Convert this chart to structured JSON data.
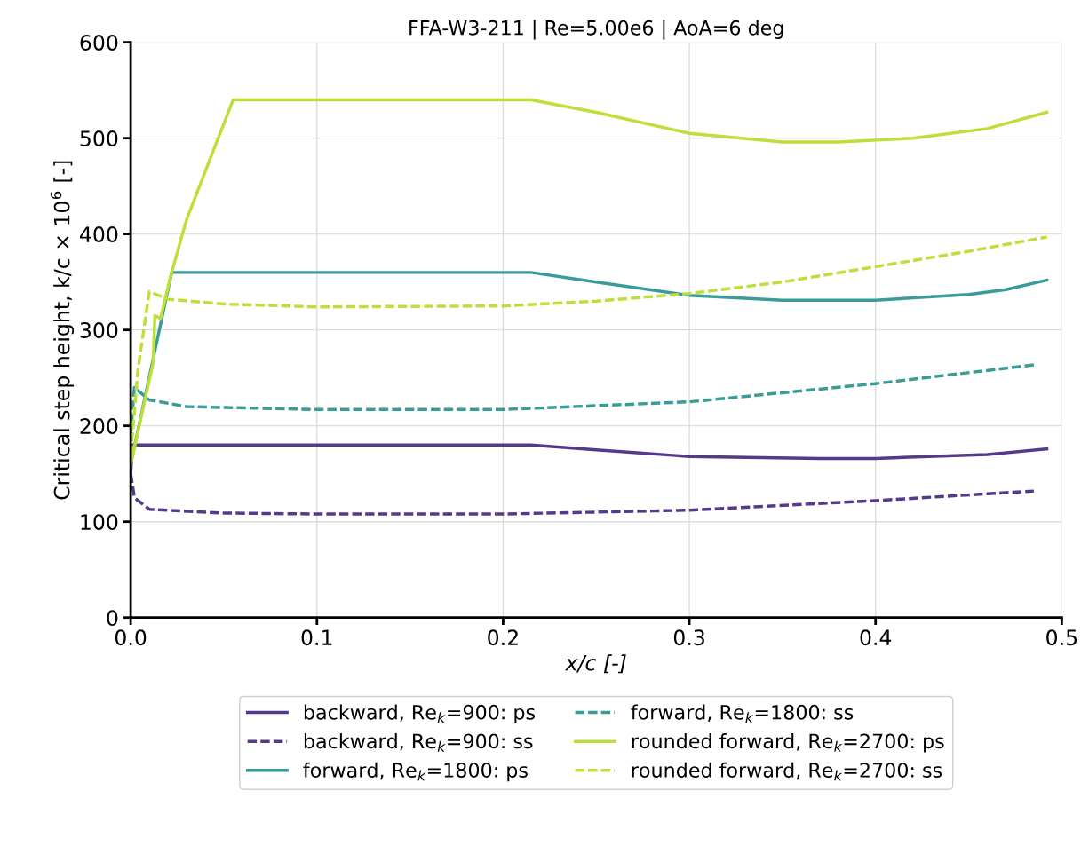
{
  "chart_data": {
    "type": "line",
    "title": "FFA-W3-211 | Re=5.00e6 | AoA=6 deg",
    "xlabel": "x/c [-]",
    "ylabel": "Critical step height, k/c × 10$^{6}$ [-]",
    "xlim": [
      0.0,
      0.5
    ],
    "xticks": [
      {
        "value": 0,
        "label": "0.0"
      },
      0.1,
      0.2,
      0.3,
      0.4,
      0.5
    ],
    "ylim": [
      0,
      600
    ],
    "yticks": [
      0,
      100,
      200,
      300,
      400,
      500,
      600
    ],
    "grid": true,
    "legend": "bottom",
    "marker": "none",
    "series": [
      {
        "name": "backward, Re$_{k}$=900: ps",
        "color": "#55398a",
        "line_style": "solid",
        "x": [
          0,
          0.001,
          0.215,
          0.25,
          0.3,
          0.37,
          0.4,
          0.46,
          0.492
        ],
        "values": [
          150,
          180,
          180,
          175,
          168,
          166,
          166,
          170,
          176
        ]
      },
      {
        "name": "backward, Re$_{k}$=900: ss",
        "color": "#55398a",
        "line_style": "dashed",
        "x": [
          0,
          0.002,
          0.01,
          0.05,
          0.1,
          0.2,
          0.3,
          0.4,
          0.485
        ],
        "values": [
          150,
          125,
          113,
          109,
          108,
          108,
          112,
          122,
          132
        ]
      },
      {
        "name": "forward, Re$_{k}$=1800: ps",
        "color": "#3a9c98",
        "line_style": "solid",
        "x": [
          0,
          0.022,
          0.215,
          0.25,
          0.3,
          0.35,
          0.4,
          0.45,
          0.47,
          0.492
        ],
        "values": [
          160,
          360,
          360,
          350,
          336,
          331,
          331,
          337,
          342,
          352
        ]
      },
      {
        "name": "forward, Re$_{k}$=1800: ss",
        "color": "#3a9c98",
        "line_style": "dashed",
        "x": [
          0,
          0.002,
          0.01,
          0.03,
          0.1,
          0.2,
          0.3,
          0.4,
          0.487
        ],
        "values": [
          190,
          240,
          227,
          220,
          217,
          217,
          225,
          244,
          264
        ]
      },
      {
        "name": "rounded forward, Re$_{k}$=2700: ps",
        "color": "#bddf3a",
        "line_style": "solid",
        "x": [
          0,
          0.012,
          0.013,
          0.016,
          0.022,
          0.03,
          0.045,
          0.055,
          0.215,
          0.25,
          0.3,
          0.35,
          0.38,
          0.42,
          0.46,
          0.492
        ],
        "values": [
          160,
          265,
          315,
          312,
          360,
          415,
          490,
          540,
          540,
          527,
          505,
          496,
          496,
          500,
          510,
          527
        ]
      },
      {
        "name": "rounded forward, Re$_{k}$=2700: ss",
        "color": "#bddf3a",
        "line_style": "dashed",
        "x": [
          0,
          0.004,
          0.01,
          0.02,
          0.05,
          0.1,
          0.2,
          0.25,
          0.3,
          0.35,
          0.4,
          0.45,
          0.492
        ],
        "values": [
          170,
          260,
          340,
          332,
          327,
          324,
          325,
          330,
          338,
          350,
          366,
          382,
          397
        ]
      }
    ]
  }
}
